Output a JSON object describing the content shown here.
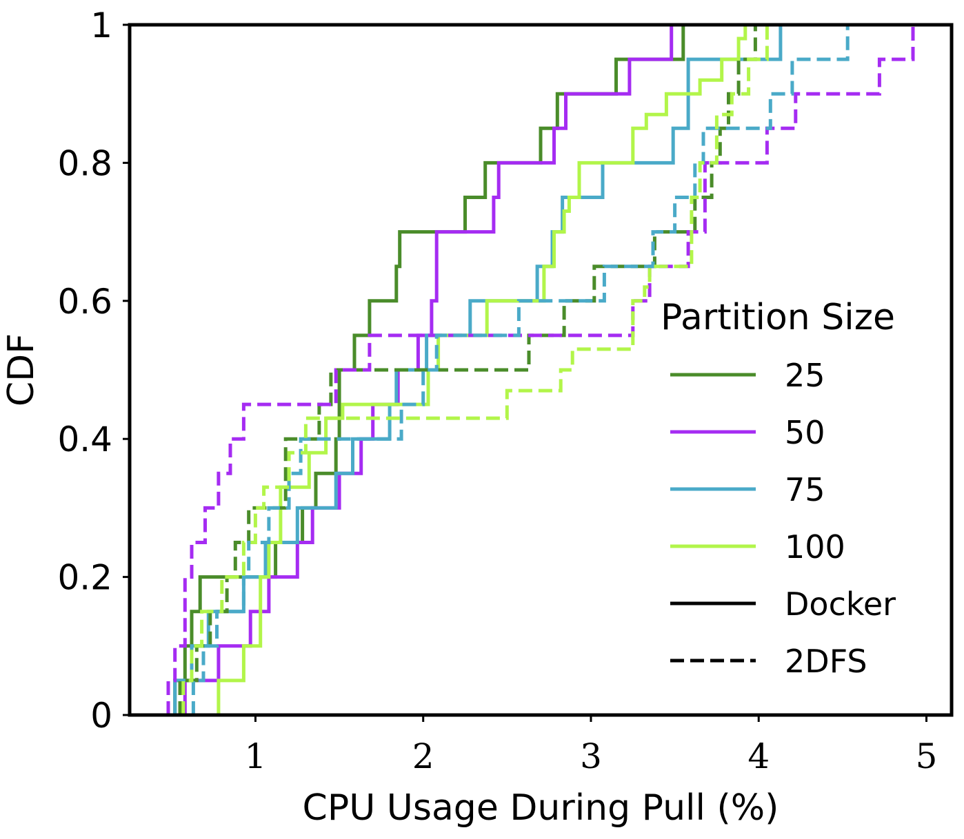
{
  "chart_data": {
    "type": "line",
    "subtype": "step-cdf",
    "xlabel": "CPU Usage During Pull (%)",
    "ylabel": "CDF",
    "xlim": [
      0.25,
      5.15
    ],
    "ylim": [
      0,
      1
    ],
    "xticks": [
      1,
      2,
      3,
      4,
      5
    ],
    "yticks": [
      0,
      0.2,
      0.4,
      0.6,
      0.8,
      1
    ],
    "ytick_labels": [
      "0",
      "0.2",
      "0.4",
      "0.6",
      "0.8",
      "1"
    ],
    "grid": false,
    "legend": {
      "title": "Partition Size",
      "placement": "center-right",
      "entries": [
        {
          "label": "25",
          "color": "#4a8c2a",
          "style": "solid"
        },
        {
          "label": "50",
          "color": "#a52cf2",
          "style": "solid"
        },
        {
          "label": "75",
          "color": "#4aaac8",
          "style": "solid"
        },
        {
          "label": "100",
          "color": "#b2f54a",
          "style": "solid"
        },
        {
          "label": "Docker",
          "color": "#000000",
          "style": "solid"
        },
        {
          "label": "2DFS",
          "color": "#000000",
          "style": "dashed"
        }
      ]
    },
    "series": [
      {
        "name": "25",
        "tool": "Docker",
        "color": "#4a8c2a",
        "dash": false,
        "x": [
          0.52,
          0.58,
          0.62,
          0.67,
          1.12,
          1.28,
          1.36,
          1.48,
          1.5,
          1.59,
          1.68,
          1.84,
          1.86,
          2.25,
          2.37,
          2.7,
          2.8,
          3.15,
          3.55
        ],
        "y": [
          0.05,
          0.1,
          0.15,
          0.2,
          0.25,
          0.3,
          0.35,
          0.4,
          0.5,
          0.55,
          0.6,
          0.65,
          0.7,
          0.75,
          0.8,
          0.85,
          0.9,
          0.95,
          1.0
        ]
      },
      {
        "name": "50",
        "tool": "Docker",
        "color": "#a52cf2",
        "dash": false,
        "x": [
          0.58,
          0.78,
          0.97,
          1.08,
          1.25,
          1.34,
          1.5,
          1.63,
          1.7,
          1.85,
          1.97,
          2.05,
          2.08,
          2.42,
          2.45,
          2.78,
          2.85,
          3.23,
          3.48,
          3.72
        ],
        "y": [
          0.05,
          0.1,
          0.15,
          0.2,
          0.25,
          0.3,
          0.35,
          0.4,
          0.45,
          0.5,
          0.55,
          0.6,
          0.7,
          0.75,
          0.8,
          0.85,
          0.9,
          0.95,
          1.0,
          1.0
        ]
      },
      {
        "name": "75",
        "tool": "Docker",
        "color": "#4aaac8",
        "dash": false,
        "x": [
          0.52,
          0.62,
          0.72,
          0.93,
          1.06,
          1.25,
          1.48,
          1.58,
          1.8,
          1.84,
          2.02,
          2.15,
          2.28,
          2.68,
          2.77,
          2.83,
          3.07,
          3.49,
          3.58,
          4.03,
          4.13,
          4.35
        ],
        "y": [
          0.05,
          0.1,
          0.15,
          0.2,
          0.25,
          0.3,
          0.35,
          0.4,
          0.45,
          0.5,
          0.55,
          0.55,
          0.6,
          0.65,
          0.7,
          0.75,
          0.8,
          0.85,
          0.95,
          0.95,
          1.0,
          1.0
        ]
      },
      {
        "name": "100",
        "tool": "Docker",
        "color": "#b2f54a",
        "dash": false,
        "x": [
          0.78,
          0.93,
          1.03,
          1.08,
          1.15,
          1.32,
          1.42,
          1.52,
          2.03,
          2.09,
          2.38,
          2.72,
          2.78,
          2.84,
          2.87,
          2.93,
          3.25,
          3.33,
          3.45,
          3.65,
          3.78,
          3.88,
          3.92,
          3.97
        ],
        "y": [
          0.05,
          0.1,
          0.2,
          0.25,
          0.33,
          0.38,
          0.43,
          0.45,
          0.5,
          0.55,
          0.6,
          0.65,
          0.7,
          0.73,
          0.75,
          0.8,
          0.85,
          0.87,
          0.9,
          0.92,
          0.95,
          0.98,
          1.0,
          1.0
        ]
      },
      {
        "name": "25",
        "tool": "2DFS",
        "color": "#4a8c2a",
        "dash": true,
        "x": [
          0.55,
          0.65,
          0.73,
          0.83,
          0.88,
          0.96,
          1.18,
          1.38,
          1.45,
          2.63,
          2.84,
          3.02,
          3.38,
          3.62,
          3.72,
          3.77,
          3.82,
          3.88,
          3.98,
          4.2
        ],
        "y": [
          0.05,
          0.1,
          0.15,
          0.2,
          0.25,
          0.3,
          0.4,
          0.45,
          0.5,
          0.55,
          0.6,
          0.65,
          0.7,
          0.75,
          0.8,
          0.85,
          0.9,
          0.95,
          1.0,
          1.0
        ]
      },
      {
        "name": "50",
        "tool": "2DFS",
        "color": "#a52cf2",
        "dash": true,
        "x": [
          0.48,
          0.52,
          0.58,
          0.62,
          0.7,
          0.78,
          0.85,
          0.93,
          1.48,
          1.68,
          1.75,
          3.25,
          3.35,
          3.58,
          3.68,
          4.05,
          4.22,
          4.72,
          4.92
        ],
        "y": [
          0.05,
          0.1,
          0.2,
          0.25,
          0.3,
          0.35,
          0.4,
          0.45,
          0.5,
          0.55,
          0.55,
          0.6,
          0.65,
          0.7,
          0.8,
          0.85,
          0.9,
          0.95,
          1.0
        ]
      },
      {
        "name": "75",
        "tool": "2DFS",
        "color": "#4aaac8",
        "dash": true,
        "x": [
          0.63,
          0.69,
          0.77,
          0.93,
          0.96,
          1.08,
          1.2,
          1.27,
          1.87,
          2.0,
          2.08,
          2.15,
          2.57,
          3.08,
          3.37,
          3.5,
          3.62,
          3.67,
          4.07,
          4.2,
          4.53
        ],
        "y": [
          0.05,
          0.1,
          0.15,
          0.2,
          0.25,
          0.3,
          0.35,
          0.4,
          0.45,
          0.5,
          0.55,
          0.55,
          0.6,
          0.65,
          0.7,
          0.75,
          0.8,
          0.85,
          0.9,
          0.95,
          1.0
        ]
      },
      {
        "name": "100",
        "tool": "2DFS",
        "color": "#b2f54a",
        "dash": true,
        "x": [
          0.57,
          0.62,
          0.68,
          0.8,
          0.93,
          1.0,
          1.05,
          1.2,
          1.3,
          2.5,
          2.82,
          2.89,
          3.25,
          3.32,
          3.35,
          3.6,
          3.65,
          3.75,
          3.84,
          3.94,
          4.05
        ],
        "y": [
          0.05,
          0.1,
          0.15,
          0.2,
          0.25,
          0.3,
          0.33,
          0.38,
          0.43,
          0.47,
          0.5,
          0.53,
          0.6,
          0.62,
          0.65,
          0.75,
          0.8,
          0.87,
          0.9,
          0.95,
          1.0
        ]
      }
    ]
  }
}
